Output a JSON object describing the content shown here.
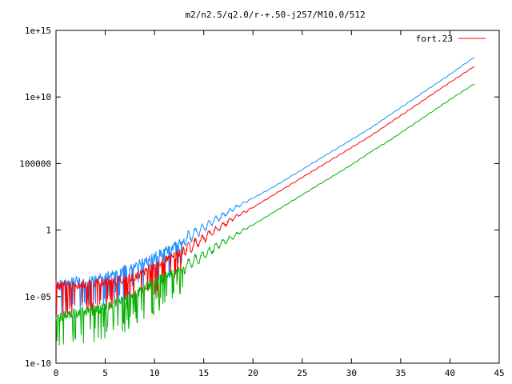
{
  "chart_data": {
    "type": "line",
    "title": "m2/n2.5/q2.0/r-+.50-j257/M10.0/512",
    "xlabel": "",
    "ylabel": "",
    "xlim": [
      0,
      45
    ],
    "ylim_log10": [
      -10,
      15
    ],
    "yscale": "log",
    "grid": false,
    "legend_position": "top-right",
    "x_ticks": [
      0,
      5,
      10,
      15,
      20,
      25,
      30,
      35,
      40,
      45
    ],
    "x_tick_labels": [
      "0",
      "5",
      "10",
      "15",
      "20",
      "25",
      "30",
      "35",
      "40",
      "45"
    ],
    "y_ticks_log10": [
      -10,
      -5,
      0,
      5,
      10,
      15
    ],
    "y_tick_labels": [
      "1e-10",
      "1e-05",
      "1",
      "100000",
      "1e+10",
      "1e+15"
    ],
    "legend": [
      {
        "label": "fort.23",
        "color": "#ff0000"
      }
    ],
    "series": [
      {
        "color": "#1e8cff",
        "x": [
          0,
          1,
          2,
          3,
          4,
          5,
          6,
          7,
          8,
          9,
          10,
          11,
          12,
          13,
          14,
          15,
          16,
          17,
          18,
          19,
          20,
          22,
          24,
          26,
          28,
          30,
          32,
          34,
          36,
          38,
          40,
          42.5
        ],
        "log10_y": [
          -4.3,
          -4.0,
          -3.9,
          -3.9,
          -3.7,
          -3.6,
          -3.4,
          -3.1,
          -2.8,
          -2.5,
          -2.1,
          -1.7,
          -1.3,
          -0.8,
          -0.3,
          0.2,
          0.7,
          1.1,
          1.6,
          2.0,
          2.4,
          3.2,
          4.1,
          5.0,
          5.9,
          6.8,
          7.7,
          8.7,
          9.7,
          10.7,
          11.7,
          13.0
        ]
      },
      {
        "color": "#ff0000",
        "x": [
          0,
          1,
          2,
          3,
          4,
          5,
          6,
          7,
          8,
          9,
          10,
          11,
          12,
          13,
          14,
          15,
          16,
          17,
          18,
          19,
          20,
          22,
          24,
          26,
          28,
          30,
          32,
          34,
          36,
          38,
          40,
          42.5
        ],
        "log10_y": [
          -4.3,
          -4.2,
          -4.2,
          -4.2,
          -4.1,
          -4.0,
          -3.9,
          -3.8,
          -3.6,
          -3.2,
          -2.8,
          -2.4,
          -2.0,
          -1.6,
          -1.1,
          -0.6,
          -0.1,
          0.4,
          0.9,
          1.3,
          1.7,
          2.6,
          3.5,
          4.4,
          5.3,
          6.2,
          7.1,
          8.1,
          9.1,
          10.1,
          11.1,
          12.3
        ]
      },
      {
        "color": "#00b000",
        "x": [
          0,
          1,
          2,
          3,
          4,
          5,
          6,
          7,
          8,
          9,
          10,
          11,
          12,
          13,
          14,
          15,
          16,
          17,
          18,
          19,
          20,
          22,
          24,
          26,
          28,
          30,
          32,
          34,
          36,
          38,
          40,
          42.5
        ],
        "log10_y": [
          -6.8,
          -6.4,
          -6.3,
          -6.2,
          -6.1,
          -5.9,
          -5.6,
          -5.3,
          -4.9,
          -4.5,
          -4.0,
          -3.6,
          -3.2,
          -2.8,
          -2.3,
          -1.9,
          -1.4,
          -0.9,
          -0.5,
          0.0,
          0.4,
          1.3,
          2.2,
          3.1,
          4.0,
          4.9,
          5.9,
          6.8,
          7.8,
          8.8,
          9.8,
          11.0
        ]
      }
    ]
  }
}
